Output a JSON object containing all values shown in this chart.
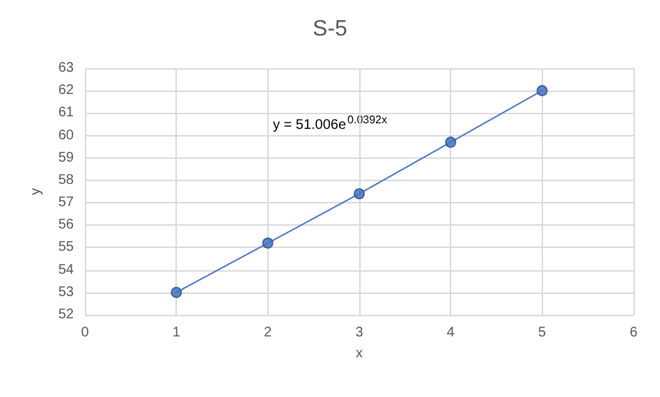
{
  "chart_data": {
    "type": "line",
    "title": "S-5",
    "xlabel": "x",
    "ylabel": "y",
    "x": [
      1,
      2,
      3,
      4,
      5
    ],
    "series": [
      {
        "color": "#4472c4",
        "values": [
          53,
          55.2,
          57.4,
          59.7,
          62
        ]
      }
    ],
    "xlim": [
      0,
      6
    ],
    "xticks": [
      0,
      1,
      2,
      3,
      4,
      5,
      6
    ],
    "ylim": [
      52,
      63
    ],
    "yticks": [
      52,
      53,
      54,
      55,
      56,
      57,
      58,
      59,
      60,
      61,
      62,
      63
    ],
    "annotations": [
      "y = 51.006e$^{0.0392x}$"
    ],
    "grid": true,
    "marker": "circle",
    "line_style": "solid"
  }
}
